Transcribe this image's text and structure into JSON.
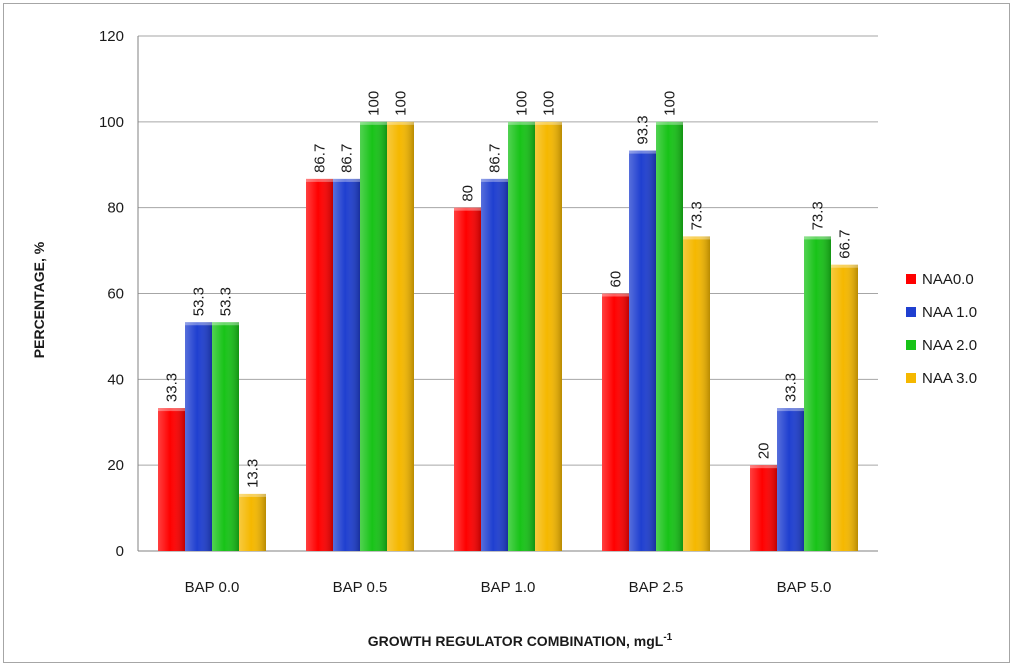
{
  "chart_data": {
    "type": "bar",
    "title": "",
    "xlabel": "GROWTH REGULATOR COMBINATION, mgL",
    "xlabel_superscript": "-1",
    "ylabel": "PERCENTAGE, %",
    "ylim": [
      0,
      120
    ],
    "yticks": [
      0,
      20,
      40,
      60,
      80,
      100,
      120
    ],
    "grid": true,
    "legend_position": "right",
    "categories": [
      "BAP 0.0",
      "BAP 0.5",
      "BAP 1.0",
      "BAP 2.5",
      "BAP 5.0"
    ],
    "series": [
      {
        "name": "NAA0.0",
        "color": "#ff0000",
        "values": [
          33.3,
          86.7,
          80,
          60,
          20
        ],
        "labels": [
          "33.3",
          "86.7",
          "80",
          "60",
          "20"
        ]
      },
      {
        "name": "NAA 1.0",
        "color": "#1f3fd0",
        "values": [
          53.3,
          86.7,
          86.7,
          93.3,
          33.3
        ],
        "labels": [
          "53.3",
          "86.7",
          "86.7",
          "93.3",
          "33.3"
        ]
      },
      {
        "name": "NAA 2.0",
        "color": "#18c318",
        "values": [
          53.3,
          100,
          100,
          100,
          73.3
        ],
        "labels": [
          "53.3",
          "100",
          "100",
          "100",
          "73.3"
        ]
      },
      {
        "name": "NAA 3.0",
        "color": "#f5b800",
        "values": [
          13.3,
          100,
          100,
          73.3,
          66.7
        ],
        "labels": [
          "13.3",
          "100",
          "100",
          "73.3",
          "66.7"
        ]
      }
    ]
  }
}
